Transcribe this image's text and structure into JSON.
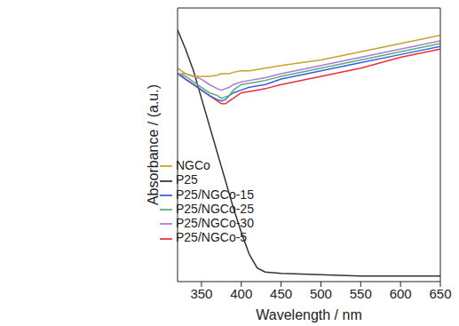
{
  "chart_data": {
    "type": "line",
    "x_label": "Wavelength / nm",
    "y_label": "Absorbance / (a.u.)",
    "x": [
      320,
      330,
      340,
      350,
      360,
      370,
      375,
      380,
      385,
      390,
      400,
      410,
      420,
      430,
      450,
      500,
      550,
      600,
      650
    ],
    "xlim": [
      320,
      650
    ],
    "xticks": [
      350,
      400,
      450,
      500,
      550,
      600,
      650
    ],
    "ylim": [
      0,
      100
    ],
    "tick_labels": "x",
    "grid": false,
    "legend": "center",
    "series": [
      {
        "name": "P25",
        "color": "#333333",
        "values": [
          92,
          85,
          77,
          67,
          57,
          47,
          42,
          37,
          32,
          27,
          18,
          10,
          5,
          3.5,
          3,
          2.5,
          2,
          2,
          2
        ]
      },
      {
        "name": "P25/NGCo-5",
        "color": "#e8303a",
        "values": [
          76,
          74,
          72,
          70,
          68,
          66,
          65,
          65,
          66,
          67,
          69,
          69.5,
          70,
          70.5,
          72,
          75,
          78,
          82,
          85
        ]
      },
      {
        "name": "P25/NGCo-15",
        "color": "#3a5fe0",
        "values": [
          76,
          74,
          72,
          70,
          68,
          66.5,
          66,
          66.5,
          68,
          69,
          70,
          71,
          71.5,
          72,
          74,
          77,
          80,
          83,
          86
        ]
      },
      {
        "name": "P25/NGCo-25",
        "color": "#5cab7a",
        "values": [
          76,
          75,
          73,
          71,
          69,
          68,
          67,
          67.5,
          68,
          70,
          72,
          72.5,
          73,
          73.5,
          75,
          78,
          81,
          84,
          87
        ]
      },
      {
        "name": "P25/NGCo-30",
        "color": "#a77cd6",
        "values": [
          76,
          76,
          75,
          74,
          72,
          70.5,
          70,
          70.5,
          71,
          72,
          73,
          73.5,
          74,
          74.5,
          76,
          79,
          82,
          85,
          88
        ]
      },
      {
        "name": "NGCo",
        "color": "#c9a227",
        "values": [
          78,
          76,
          75,
          75,
          75,
          75.5,
          76,
          76,
          76,
          76.5,
          77,
          77,
          77.5,
          78,
          79,
          81,
          84,
          87,
          90
        ]
      }
    ]
  }
}
